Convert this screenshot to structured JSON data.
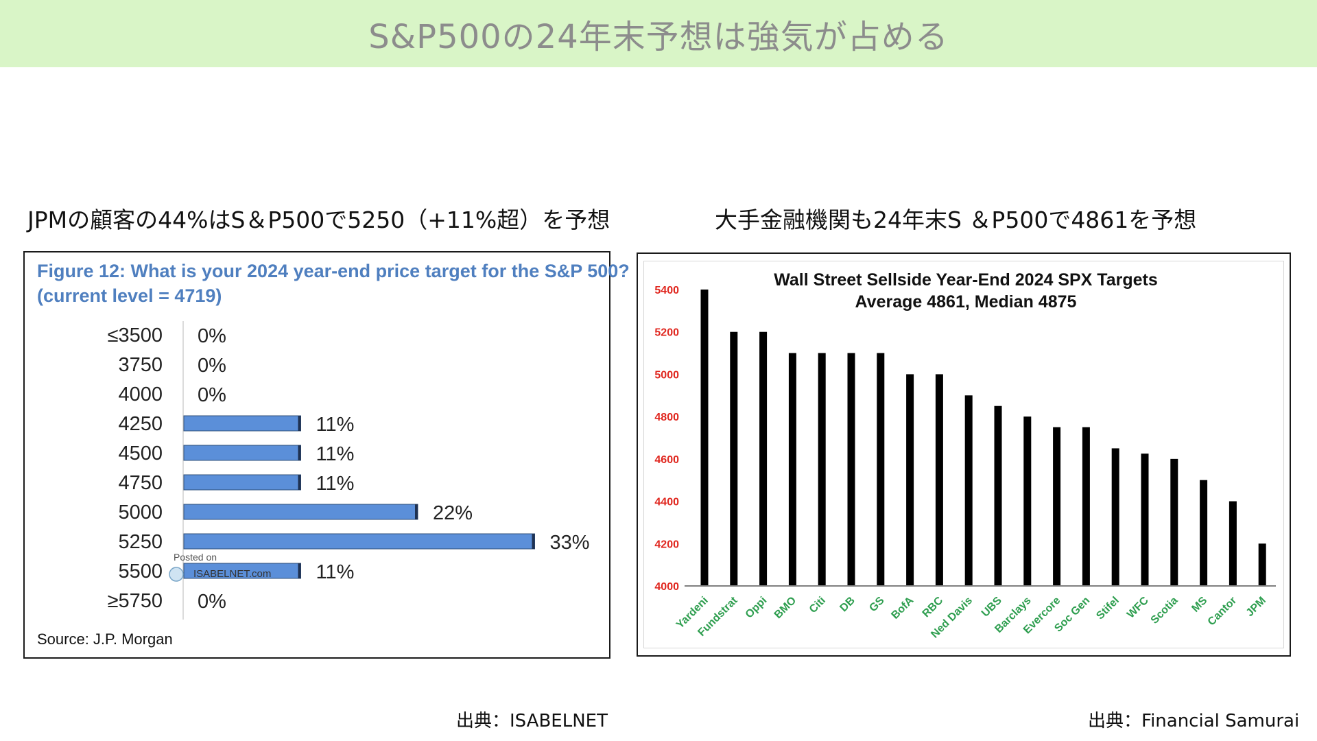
{
  "header": {
    "title": "S&P500の24年末予想は強気が占める"
  },
  "left": {
    "subtitle": "JPMの顧客の44%はS＆P500で5250（+11%超）を予想",
    "source": "出典：ISABELNET"
  },
  "right": {
    "subtitle": "大手金融機関も24年末S ＆P500で4861を予想",
    "source": "出典：Financial Samurai"
  },
  "chart_data": [
    {
      "type": "bar",
      "orientation": "horizontal",
      "title": "Figure 12: What is your 2024 year-end price target for the S&P 500?",
      "subtitle": "(current level = 4719)",
      "categories": [
        "≤3500",
        "3750",
        "4000",
        "4250",
        "4500",
        "4750",
        "5000",
        "5250",
        "5500",
        "≥5750"
      ],
      "values": [
        0,
        0,
        0,
        11,
        11,
        11,
        22,
        33,
        11,
        0
      ],
      "value_labels": [
        "0%",
        "0%",
        "0%",
        "11%",
        "11%",
        "11%",
        "22%",
        "33%",
        "11%",
        "0%"
      ],
      "bar_color": "#5b8fd9",
      "source_note": "Source: J.P. Morgan",
      "watermark": {
        "line1": "Posted on",
        "line2": "ISABELNET.com"
      }
    },
    {
      "type": "bar",
      "title": "Wall Street Sellside Year-End 2024 SPX Targets",
      "subtitle": "Average 4861, Median 4875",
      "categories": [
        "Yardeni",
        "Fundstrat",
        "Oppi",
        "BMO",
        "Citi",
        "DB",
        "GS",
        "BofA",
        "RBC",
        "Ned Davis",
        "UBS",
        "Barclays",
        "Evercore",
        "Soc Gen",
        "Stifel",
        "WFC",
        "Scotia",
        "MS",
        "Cantor",
        "JPM"
      ],
      "values": [
        5400,
        5200,
        5200,
        5100,
        5100,
        5100,
        5100,
        5000,
        5000,
        4900,
        4850,
        4800,
        4750,
        4750,
        4650,
        4625,
        4600,
        4500,
        4400,
        4200
      ],
      "ylim": [
        4000,
        5400
      ],
      "yticks": [
        "4000",
        "4200",
        "4400",
        "4600",
        "4800",
        "5000",
        "5200",
        "5400"
      ],
      "bar_color": "#000000",
      "ytick_color": "#e0271f",
      "xtick_color": "#2e9e4f"
    }
  ]
}
